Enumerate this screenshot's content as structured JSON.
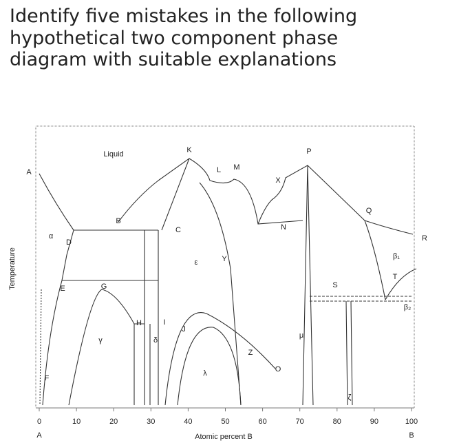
{
  "question": {
    "lines": [
      "Identify five mistakes in the following",
      "hypothetical two component phase",
      "diagram with suitable explanations"
    ]
  },
  "diagram": {
    "y_axis_label": "Temperature",
    "x_axis_label": "Atomic percent B",
    "x_ticks": [
      0,
      10,
      20,
      30,
      40,
      50,
      60,
      70,
      80,
      90,
      100
    ],
    "x_end_labels": [
      "A",
      "B"
    ],
    "labels": [
      "Liquid",
      "K",
      "P",
      "A",
      "L",
      "M",
      "X",
      "Q",
      "B",
      "C",
      "N",
      "α",
      "D",
      "R",
      "ε",
      "Y",
      "β₁",
      "T",
      "E",
      "G",
      "S",
      "β₂",
      "H",
      "I",
      "J",
      "μ",
      "γ",
      "δ",
      "Z",
      "O",
      "λ",
      "F",
      "ζ"
    ]
  }
}
